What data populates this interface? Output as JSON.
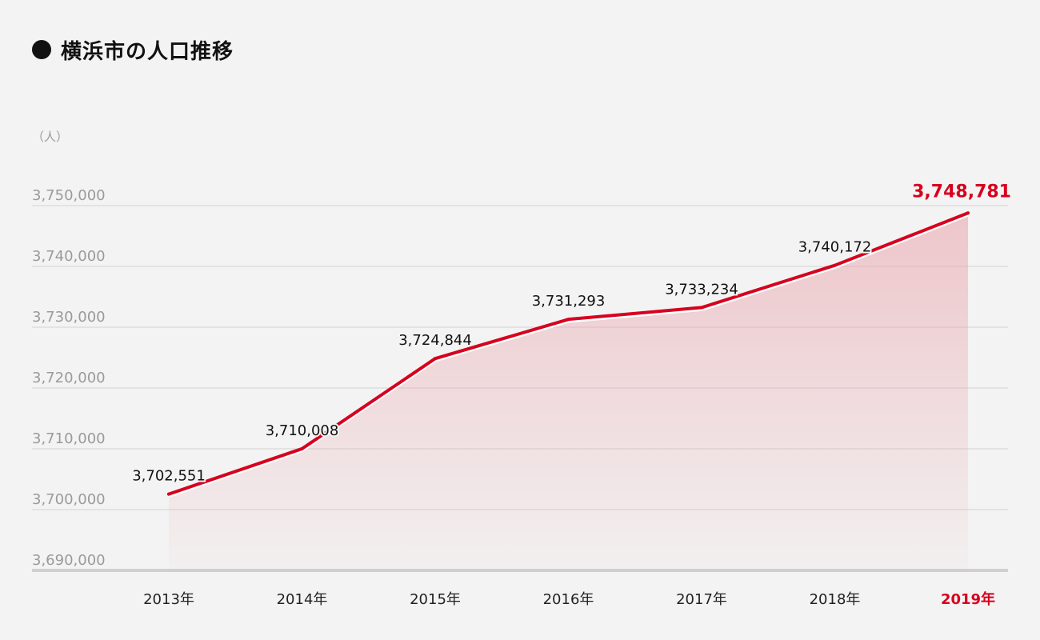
{
  "header": {
    "title_mark": "●",
    "title": "横浜市の人口推移"
  },
  "chart_data": {
    "type": "area",
    "title": "横浜市の人口推移",
    "unit_label": "（人）",
    "categories": [
      "2013年",
      "2014年",
      "2015年",
      "2016年",
      "2017年",
      "2018年",
      "2019年"
    ],
    "values": [
      3702551,
      3710008,
      3724844,
      3731293,
      3733234,
      3740172,
      3748781
    ],
    "data_labels": [
      "3,702,551",
      "3,710,008",
      "3,724,844",
      "3,731,293",
      "3,733,234",
      "3,740,172",
      "3,748,781"
    ],
    "ylim": [
      3690000,
      3750000
    ],
    "yticks": [
      3690000,
      3700000,
      3710000,
      3720000,
      3730000,
      3740000,
      3750000
    ],
    "ytick_labels": [
      "3,690,000",
      "3,700,000",
      "3,710,000",
      "3,720,000",
      "3,730,000",
      "3,740,000",
      "3,750,000"
    ],
    "highlight_index": 6,
    "grid": true,
    "line_color": "#d7001e",
    "fill_color": "#e8a0a8",
    "xlabel": "",
    "ylabel": ""
  }
}
